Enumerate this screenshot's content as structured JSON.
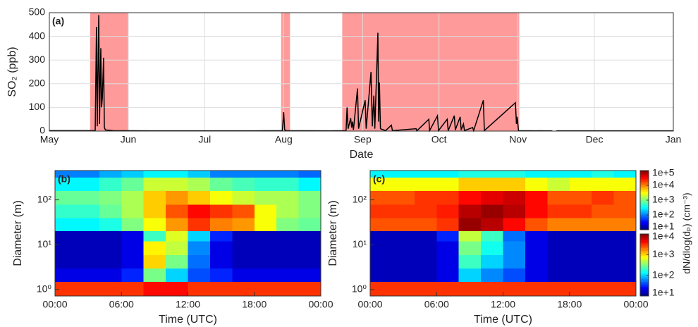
{
  "chart_data": [
    {
      "type": "line",
      "panel_label": "(a)",
      "xlabel": "Date",
      "ylabel": "SO₂ (ppb)",
      "grid": true,
      "xlim": [
        0,
        245
      ],
      "xticks": [
        {
          "value": 0,
          "label": "May"
        },
        {
          "value": 31,
          "label": "Jun"
        },
        {
          "value": 61,
          "label": "Jul"
        },
        {
          "value": 92,
          "label": "Aug"
        },
        {
          "value": 123,
          "label": "Sep"
        },
        {
          "value": 153,
          "label": "Oct"
        },
        {
          "value": 184,
          "label": "Nov"
        },
        {
          "value": 214,
          "label": "Dec"
        },
        {
          "value": 245,
          "label": "Jan"
        }
      ],
      "ylim": [
        0,
        500
      ],
      "yticks": [
        0,
        100,
        200,
        300,
        400,
        500
      ],
      "shaded": [
        [
          16,
          31
        ],
        [
          91,
          94.5
        ],
        [
          115,
          184.5
        ]
      ],
      "shade_color": "#ff9a9a",
      "series": [
        {
          "color": "#000000",
          "x": [
            0,
            18,
            18.5,
            18.8,
            19.4,
            19.7,
            20.2,
            20.5,
            20.8,
            21.3,
            21.6,
            22,
            25,
            40,
            60,
            80,
            91.5,
            92,
            92.4,
            93,
            110,
            116.5,
            116.9,
            117.3,
            118.3,
            118.7,
            119,
            119.4,
            121,
            121.4,
            124,
            124.4,
            126.3,
            126.8,
            127.4,
            127.8,
            129,
            129.3,
            129.6,
            130,
            132,
            134.3,
            134.7,
            144,
            144.3,
            149,
            149.3,
            152.4,
            152.8,
            156.2,
            156.6,
            159,
            159.4,
            161.3,
            161.7,
            162.6,
            163,
            166.2,
            166.6,
            170.4,
            170.8,
            183,
            183.4,
            183.7,
            184.2,
            195,
            197.5,
            198,
            199,
            245
          ],
          "values": [
            2,
            2,
            440,
            20,
            490,
            30,
            350,
            100,
            140,
            310,
            15,
            5,
            2,
            1,
            1,
            1,
            2,
            80,
            5,
            2,
            1,
            2,
            100,
            10,
            55,
            15,
            40,
            5,
            180,
            10,
            130,
            10,
            250,
            20,
            150,
            10,
            415,
            40,
            205,
            10,
            2,
            25,
            2,
            10,
            1,
            50,
            2,
            65,
            2,
            50,
            2,
            65,
            5,
            60,
            5,
            30,
            2,
            15,
            2,
            130,
            2,
            120,
            30,
            60,
            2,
            1,
            1,
            null,
            1,
            1
          ]
        }
      ]
    },
    {
      "type": "heatmap",
      "panel_label": "(b)",
      "xlabel": "Time (UTC)",
      "ylabel": "Diameter (m)",
      "colormap": "jet",
      "log_y": true,
      "xlim": [
        0,
        24
      ],
      "xticks": [
        {
          "value": 0,
          "label": "00:00"
        },
        {
          "value": 6,
          "label": "06:00"
        },
        {
          "value": 12,
          "label": "12:00"
        },
        {
          "value": 18,
          "label": "18:00"
        },
        {
          "value": 24,
          "label": "00:00"
        }
      ],
      "ylim": [
        0.72,
        450
      ],
      "yticks": [
        {
          "value": 1,
          "label": "10⁰"
        },
        {
          "value": 10,
          "label": "10¹"
        },
        {
          "value": 100,
          "label": "10²"
        }
      ],
      "x_edges": [
        0,
        2,
        4,
        6,
        8,
        10,
        12,
        14,
        16,
        18,
        20,
        22,
        24
      ],
      "layers": [
        {
          "y_edges": [
            20,
            40,
            80,
            160,
            320,
            450
          ],
          "z": [
            [
              300,
              300,
              400,
              1000,
              3000,
              8000,
              20000,
              10000,
              8000,
              3000,
              1000,
              800
            ],
            [
              500,
              500,
              800,
              1500,
              5000,
              15000,
              30000,
              20000,
              15000,
              3000,
              1500,
              1000
            ],
            [
              800,
              800,
              1000,
              1500,
              5000,
              8000,
              5000,
              3000,
              2000,
              1500,
              1500,
              1000
            ],
            [
              300,
              300,
              500,
              800,
              2000,
              2000,
              1500,
              800,
              600,
              500,
              500,
              300
            ],
            [
              100,
              100,
              150,
              200,
              300,
              300,
              200,
              100,
              100,
              100,
              100,
              80
            ]
          ]
        },
        {
          "y_edges": [
            0.72,
            1.5,
            3,
            6,
            12,
            20
          ],
          "z": [
            [
              3000,
              3000,
              3000,
              3000,
              4000,
              4000,
              3000,
              3000,
              3000,
              3000,
              3000,
              3000
            ],
            [
              20,
              20,
              20,
              30,
              300,
              100,
              40,
              30,
              20,
              20,
              20,
              20
            ],
            [
              15,
              15,
              15,
              20,
              1000,
              300,
              50,
              20,
              15,
              15,
              15,
              15
            ],
            [
              15,
              15,
              15,
              20,
              800,
              500,
              60,
              20,
              15,
              15,
              15,
              15
            ],
            [
              15,
              15,
              15,
              20,
              200,
              600,
              100,
              30,
              15,
              15,
              15,
              15
            ]
          ]
        }
      ]
    },
    {
      "type": "heatmap",
      "panel_label": "(c)",
      "xlabel": "Time (UTC)",
      "ylabel": "Diameter (m)",
      "colormap": "jet",
      "log_y": true,
      "xlim": [
        0,
        24
      ],
      "xticks": [
        {
          "value": 0,
          "label": "00:00"
        },
        {
          "value": 6,
          "label": "06:00"
        },
        {
          "value": 12,
          "label": "12:00"
        },
        {
          "value": 18,
          "label": "18:00"
        },
        {
          "value": 24,
          "label": "00:00"
        }
      ],
      "ylim": [
        0.72,
        450
      ],
      "yticks": [
        {
          "value": 1,
          "label": "10⁰"
        },
        {
          "value": 10,
          "label": "10¹"
        },
        {
          "value": 100,
          "label": "10²"
        }
      ],
      "x_edges": [
        0,
        2,
        4,
        6,
        8,
        10,
        12,
        14,
        16,
        18,
        20,
        22,
        24
      ],
      "layers": [
        {
          "y_edges": [
            20,
            40,
            80,
            160,
            320,
            450
          ],
          "z": [
            [
              15000,
              15000,
              15000,
              20000,
              80000,
              60000,
              30000,
              15000,
              10000,
              10000,
              10000,
              10000
            ],
            [
              20000,
              20000,
              20000,
              25000,
              60000,
              80000,
              60000,
              30000,
              20000,
              20000,
              15000,
              15000
            ],
            [
              15000,
              15000,
              20000,
              20000,
              30000,
              40000,
              50000,
              30000,
              15000,
              15000,
              20000,
              15000
            ],
            [
              3000,
              3000,
              3000,
              3000,
              5000,
              5000,
              5000,
              3000,
              2000,
              3000,
              3000,
              3000
            ],
            [
              300,
              300,
              300,
              300,
              400,
              400,
              400,
              300,
              300,
              300,
              400,
              300
            ]
          ]
        },
        {
          "y_edges": [
            0.72,
            1.5,
            3,
            6,
            12,
            20
          ],
          "z": [
            [
              3000,
              3000,
              3000,
              3000,
              3000,
              3000,
              3000,
              3000,
              3000,
              3000,
              3000,
              3000
            ],
            [
              15,
              15,
              15,
              20,
              100,
              60,
              40,
              20,
              15,
              15,
              15,
              15
            ],
            [
              15,
              15,
              15,
              20,
              200,
              100,
              60,
              20,
              15,
              15,
              15,
              15
            ],
            [
              15,
              15,
              15,
              20,
              300,
              150,
              60,
              20,
              15,
              15,
              15,
              15
            ],
            [
              15,
              15,
              15,
              30,
              500,
              200,
              50,
              20,
              15,
              15,
              15,
              15
            ]
          ]
        }
      ],
      "colorbar_label": "dN/dlog(dₚ) (cm⁻³)",
      "colorbars": [
        {
          "clim": [
            10,
            100000
          ],
          "ticks": [
            {
              "value": 100000,
              "label": "1e+5"
            },
            {
              "value": 10000,
              "label": "1e+4"
            },
            {
              "value": 1000,
              "label": "1e+3"
            },
            {
              "value": 100,
              "label": "1e+2"
            },
            {
              "value": 10,
              "label": "1e+1"
            }
          ]
        },
        {
          "clim": [
            10,
            10000
          ],
          "ticks": [
            {
              "value": 10000,
              "label": "1e+4"
            },
            {
              "value": 1000,
              "label": "1e+3"
            },
            {
              "value": 100,
              "label": "1e+2"
            },
            {
              "value": 10,
              "label": "1e+1"
            }
          ]
        }
      ]
    }
  ]
}
